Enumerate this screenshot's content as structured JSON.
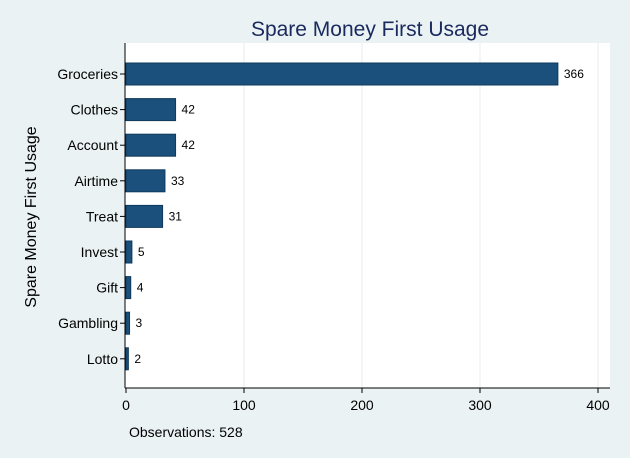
{
  "chart_data": {
    "type": "bar",
    "orientation": "horizontal",
    "title": "Spare Money First Usage",
    "ylabel": "Spare Money First Usage",
    "xlabel": "",
    "categories": [
      "Groceries",
      "Clothes",
      "Account",
      "Airtime",
      "Treat",
      "Invest",
      "Gift",
      "Gambling",
      "Lotto"
    ],
    "values": [
      366,
      42,
      42,
      33,
      31,
      5,
      4,
      3,
      2
    ],
    "xlim": [
      0,
      400
    ],
    "xticks": [
      0,
      100,
      200,
      300,
      400
    ],
    "grid": true,
    "data_labels": true,
    "note": "Observations: 528",
    "colors": {
      "bar": "#1b4f7c",
      "background": "#eaf2f3",
      "plot_background": "#ffffff",
      "title": "#1a2a5e",
      "grid": "#e6ecee"
    }
  }
}
